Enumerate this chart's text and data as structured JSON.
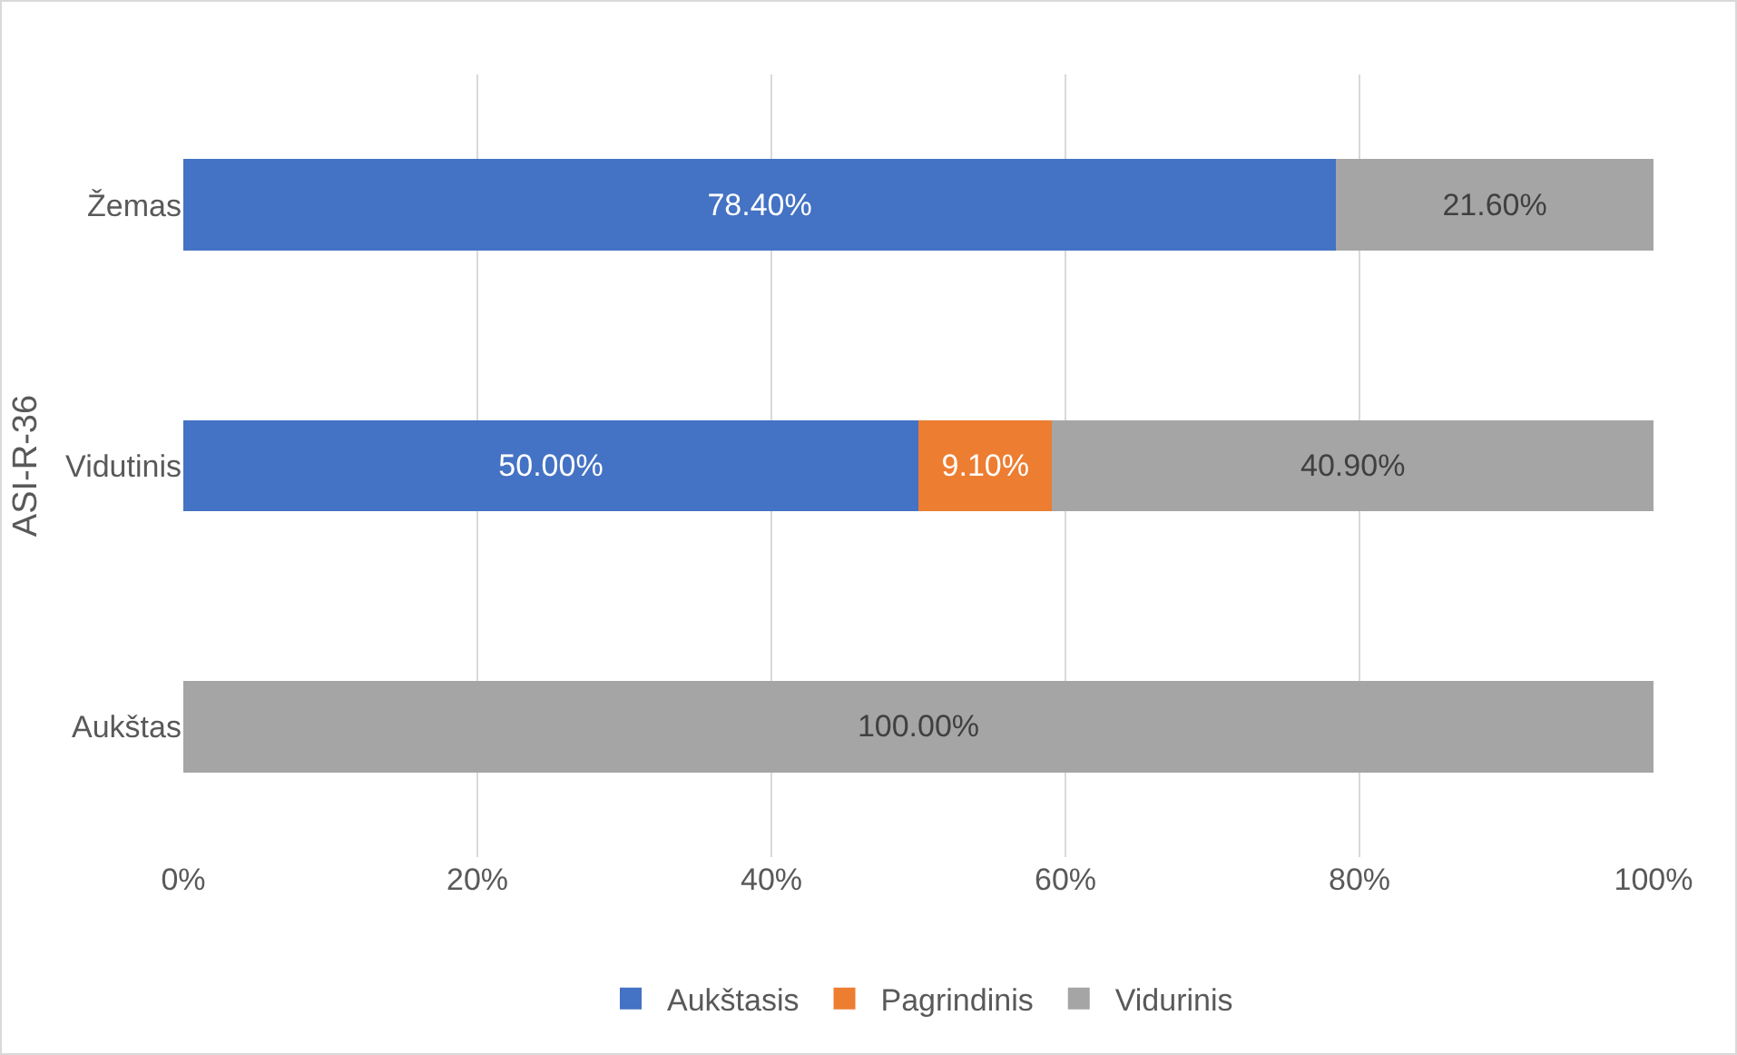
{
  "chart_data": {
    "type": "bar",
    "orientation": "horizontal",
    "stacked": true,
    "ylabel": "ASI-R-36",
    "categories": [
      "Žemas",
      "Vidutinis",
      "Aukštas"
    ],
    "series": [
      {
        "name": "Aukštasis",
        "color": "#4472c4",
        "values": [
          78.4,
          50,
          0
        ],
        "value_labels": [
          "78.40%",
          "50.00%",
          null
        ]
      },
      {
        "name": "Pagrindinis",
        "color": "#ed7d31",
        "values": [
          0,
          9.1,
          0
        ],
        "value_labels": [
          null,
          "9.10%",
          null
        ]
      },
      {
        "name": "Vidurinis",
        "color": "#a5a5a5",
        "values": [
          21.6,
          40.9,
          100
        ],
        "value_labels": [
          "21.60%",
          "40.90%",
          "100.00%"
        ]
      }
    ],
    "xlim": [
      0,
      100
    ],
    "xticks": [
      {
        "value": 0,
        "label": "0%"
      },
      {
        "value": 20,
        "label": "20%"
      },
      {
        "value": 40,
        "label": "40%"
      },
      {
        "value": 60,
        "label": "60%"
      },
      {
        "value": 80,
        "label": "80%"
      },
      {
        "value": 100,
        "label": "100%"
      }
    ],
    "grid": "x",
    "legend": "bottom"
  }
}
